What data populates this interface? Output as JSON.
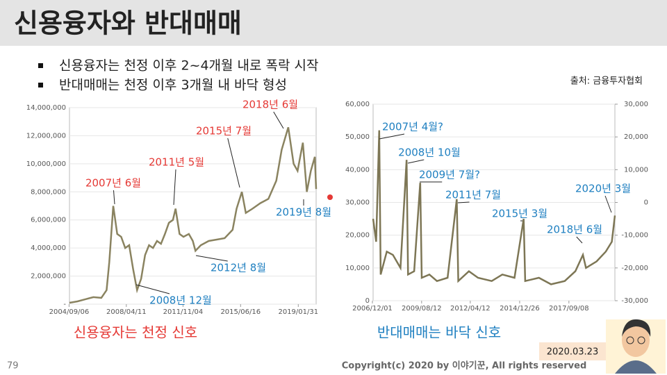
{
  "title": "신용융자와 반대매매",
  "bullets": [
    "신용융자는 천정 이후 2~4개월 내로 폭락 시작",
    "반대매매는 천정 이후 3개월 내 바닥 형성"
  ],
  "source": "출처: 금융투자협회",
  "captions": [
    "신용융자는 천정 신호",
    "반대매매는 바닥 신호"
  ],
  "page_number": "79",
  "copyright": "Copyright(c) 2020 by 이야기꾼, All rights reserved",
  "date": "2020.03.23",
  "chart_data": [
    {
      "type": "line",
      "color": "#8a8360",
      "x": [
        "2004/09",
        "2005/03",
        "2005/09",
        "2006/03",
        "2006/09",
        "2007/01",
        "2007/03",
        "2007/06",
        "2007/09",
        "2007/12",
        "2008/03",
        "2008/06",
        "2008/09",
        "2008/12",
        "2009/03",
        "2009/06",
        "2009/09",
        "2009/12",
        "2010/03",
        "2010/06",
        "2010/09",
        "2010/12",
        "2011/03",
        "2011/05",
        "2011/08",
        "2011/11",
        "2012/03",
        "2012/06",
        "2012/08",
        "2012/12",
        "2013/06",
        "2013/12",
        "2014/06",
        "2014/12",
        "2015/03",
        "2015/07",
        "2015/10",
        "2016/03",
        "2016/09",
        "2017/03",
        "2017/09",
        "2018/01",
        "2018/06",
        "2018/10",
        "2019/01",
        "2019/05",
        "2019/08",
        "2019/11",
        "2020/02",
        "2020/03"
      ],
      "values": [
        100000,
        200000,
        350000,
        500000,
        450000,
        1000000,
        3000000,
        7000000,
        5000000,
        4800000,
        4000000,
        4200000,
        2500000,
        1000000,
        1800000,
        3500000,
        4200000,
        4000000,
        4500000,
        4300000,
        5000000,
        5800000,
        6000000,
        6800000,
        5000000,
        4800000,
        5000000,
        4500000,
        3800000,
        4200000,
        4500000,
        4600000,
        4700000,
        5300000,
        6800000,
        8000000,
        6500000,
        6800000,
        7200000,
        7500000,
        8800000,
        11000000,
        12600000,
        10000000,
        9500000,
        11500000,
        8000000,
        9500000,
        10500000,
        8200000
      ],
      "xlim": [
        "2004/09",
        "2020/03"
      ],
      "xticks": [
        "2004/09/06",
        "2008/04/11",
        "2011/11/04",
        "2015/06/16",
        "2019/01/31"
      ],
      "ylim": [
        0,
        14000000
      ],
      "yticks": [
        {
          "value": 0,
          "label": "-"
        },
        {
          "value": 2000000,
          "label": "2,000,000"
        },
        {
          "value": 4000000,
          "label": "4,000,000"
        },
        {
          "value": 6000000,
          "label": "6,000,000"
        },
        {
          "value": 8000000,
          "label": "8,000,000"
        },
        {
          "value": 10000000,
          "label": "10,000,000"
        },
        {
          "value": 12000000,
          "label": "12,000,000"
        },
        {
          "value": 14000000,
          "label": "14,000,000"
        }
      ],
      "annotations": [
        {
          "text": "2007년 6월",
          "color": "#e53935"
        },
        {
          "text": "2011년 5월",
          "color": "#e53935"
        },
        {
          "text": "2015년 7월",
          "color": "#e53935"
        },
        {
          "text": "2018년 6월",
          "color": "#e53935"
        },
        {
          "text": "2019년 8월",
          "color": "#1e7fc0"
        },
        {
          "text": "2012년 8월",
          "color": "#1e7fc0"
        },
        {
          "text": "2008년 12월",
          "color": "#1e7fc0"
        }
      ]
    },
    {
      "type": "line",
      "color": "#7d7655",
      "x": [
        "2006/12",
        "2007/02",
        "2007/04",
        "2007/05",
        "2007/09",
        "2008/01",
        "2008/06",
        "2008/10",
        "2008/11",
        "2009/03",
        "2009/07",
        "2009/08",
        "2010/01",
        "2010/06",
        "2011/01",
        "2011/07",
        "2011/08",
        "2012/03",
        "2012/09",
        "2013/06",
        "2014/01",
        "2014/09",
        "2015/03",
        "2015/04",
        "2016/01",
        "2016/09",
        "2017/06",
        "2018/01",
        "2018/06",
        "2018/08",
        "2019/03",
        "2019/09",
        "2020/01",
        "2020/03"
      ],
      "values": [
        25000,
        18000,
        52000,
        8000,
        15000,
        14000,
        10000,
        43000,
        8000,
        9000,
        36000,
        7000,
        8000,
        6000,
        7000,
        31000,
        6000,
        9000,
        7000,
        6000,
        8000,
        7000,
        25000,
        6000,
        7000,
        5000,
        6000,
        9000,
        14000,
        10000,
        12000,
        15000,
        18000,
        26000
      ],
      "xlim": [
        "2006/12",
        "2020/03"
      ],
      "xticks": [
        "2006/12/01",
        "2009/08/12",
        "2012/04/12",
        "2014/12/26",
        "2017/09/08"
      ],
      "ylim": [
        0,
        60000
      ],
      "yticks": [
        0,
        {
          "value": 10000,
          "label": "10,000"
        },
        {
          "value": 20000,
          "label": "20,000"
        },
        {
          "value": 30000,
          "label": "30,000"
        },
        {
          "value": 40000,
          "label": "40,000"
        },
        {
          "value": 50000,
          "label": "50,000"
        },
        {
          "value": 60000,
          "label": "60,000"
        }
      ],
      "y2lim": [
        -30000,
        30000
      ],
      "y2ticks": [
        {
          "value": -30000,
          "label": "-30,000"
        },
        {
          "value": -20000,
          "label": "-20,000"
        },
        {
          "value": -10000,
          "label": "-10,000"
        },
        0,
        {
          "value": 10000,
          "label": "10,000"
        },
        {
          "value": 20000,
          "label": "20,000"
        },
        {
          "value": 30000,
          "label": "30,000"
        }
      ],
      "annotations": [
        {
          "text": "2007년 4월?",
          "color": "#1e7fc0"
        },
        {
          "text": "2008년 10월",
          "color": "#1e7fc0"
        },
        {
          "text": "2009년 7월?",
          "color": "#1e7fc0"
        },
        {
          "text": "2011년 7월",
          "color": "#1e7fc0"
        },
        {
          "text": "2015년 3월",
          "color": "#1e7fc0"
        },
        {
          "text": "2018년 6월",
          "color": "#1e7fc0"
        },
        {
          "text": "2020년 3월",
          "color": "#1e7fc0"
        }
      ]
    }
  ]
}
